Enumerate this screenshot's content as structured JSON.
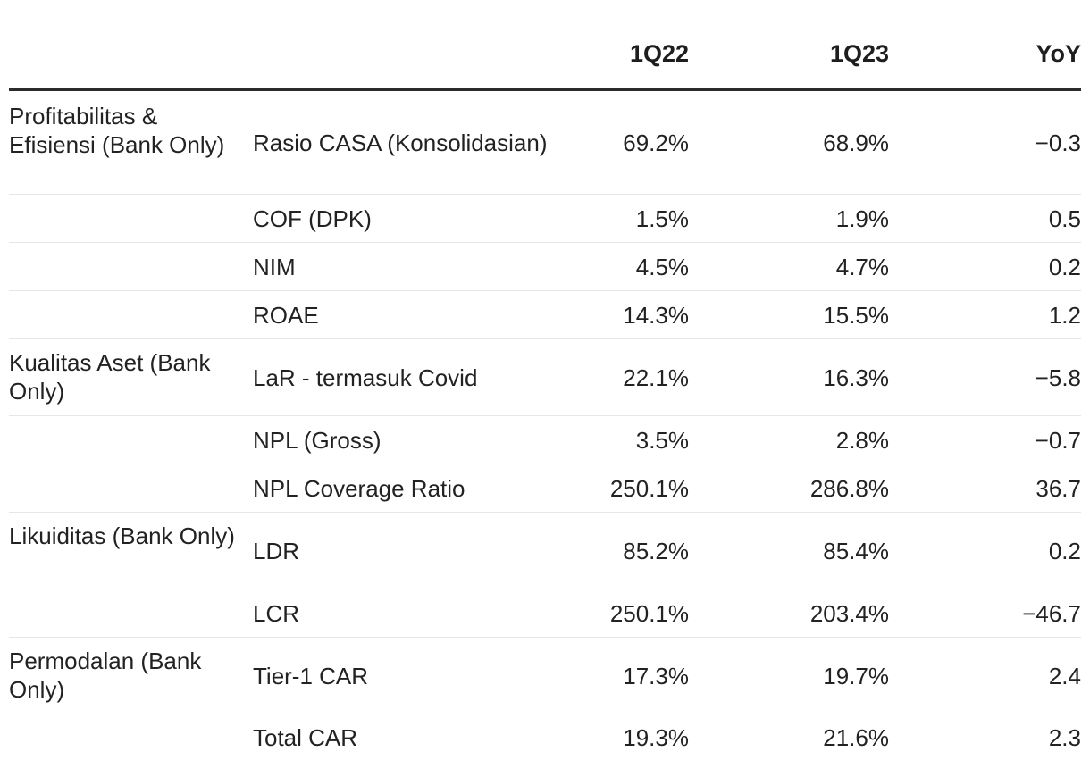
{
  "table": {
    "headers": {
      "group": "",
      "metric": "",
      "q22": "1Q22",
      "q23": "1Q23",
      "yoy": "YoY"
    },
    "rows": [
      {
        "group": "Profitabilitas & Efisiensi (Bank Only)",
        "metric": "Rasio CASA (Konsolidasian)",
        "q22": "69.2%",
        "q23": "68.9%",
        "yoy": "−0.3"
      },
      {
        "group": "",
        "metric": "COF (DPK)",
        "q22": "1.5%",
        "q23": "1.9%",
        "yoy": "0.5"
      },
      {
        "group": "",
        "metric": "NIM",
        "q22": "4.5%",
        "q23": "4.7%",
        "yoy": "0.2"
      },
      {
        "group": "",
        "metric": "ROAE",
        "q22": "14.3%",
        "q23": "15.5%",
        "yoy": "1.2"
      },
      {
        "group": "Kualitas Aset (Bank Only)",
        "metric": "LaR - termasuk Covid",
        "q22": "22.1%",
        "q23": "16.3%",
        "yoy": "−5.8"
      },
      {
        "group": "",
        "metric": "NPL (Gross)",
        "q22": "3.5%",
        "q23": "2.8%",
        "yoy": "−0.7"
      },
      {
        "group": "",
        "metric": "NPL Coverage Ratio",
        "q22": "250.1%",
        "q23": "286.8%",
        "yoy": "36.7"
      },
      {
        "group": "Likuiditas (Bank Only)",
        "metric": "LDR",
        "q22": "85.2%",
        "q23": "85.4%",
        "yoy": "0.2"
      },
      {
        "group": "",
        "metric": "LCR",
        "q22": "250.1%",
        "q23": "203.4%",
        "yoy": "−46.7"
      },
      {
        "group": "Permodalan (Bank Only)",
        "metric": "Tier-1 CAR",
        "q22": "17.3%",
        "q23": "19.7%",
        "yoy": "2.4"
      },
      {
        "group": "",
        "metric": "Total CAR",
        "q22": "19.3%",
        "q23": "21.6%",
        "yoy": "2.3"
      }
    ]
  }
}
